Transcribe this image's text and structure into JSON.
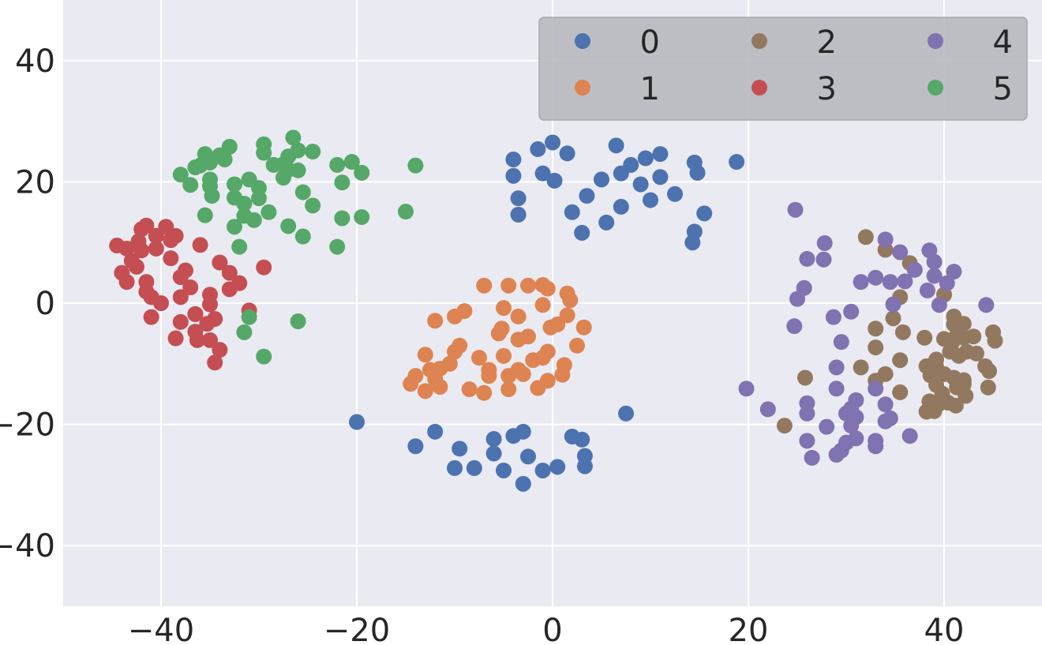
{
  "chart_data": {
    "type": "scatter",
    "title": "",
    "xlabel": "",
    "ylabel": "",
    "xlim": [
      -50,
      50
    ],
    "ylim": [
      -50,
      50
    ],
    "xticks": [
      -40,
      -20,
      0,
      20,
      40
    ],
    "yticks": [
      -40,
      -20,
      0,
      20,
      40
    ],
    "xtick_labels": [
      "−40",
      "−20",
      "0",
      "20",
      "40"
    ],
    "ytick_labels": [
      "−40",
      "−20",
      "0",
      "20",
      "40"
    ],
    "grid": true,
    "legend": {
      "placement": "top-right",
      "columns": 3
    },
    "series": [
      {
        "name": "0",
        "color": "#4c72b0",
        "points": [
          [
            -4,
            23.7
          ],
          [
            -4,
            21
          ],
          [
            -3.5,
            17.3
          ],
          [
            -3.5,
            14.6
          ],
          [
            -1.5,
            25.4
          ],
          [
            0,
            26.5
          ],
          [
            -1,
            21.4
          ],
          [
            0.2,
            20.2
          ],
          [
            1.5,
            24.7
          ],
          [
            2,
            15
          ],
          [
            3,
            11.6
          ],
          [
            3.5,
            17.7
          ],
          [
            5,
            20.4
          ],
          [
            5.5,
            13.3
          ],
          [
            6.5,
            26
          ],
          [
            7,
            21.4
          ],
          [
            8,
            22.8
          ],
          [
            7,
            15.9
          ],
          [
            9,
            19.6
          ],
          [
            9.5,
            23.9
          ],
          [
            10,
            17
          ],
          [
            11,
            20.8
          ],
          [
            11,
            24.6
          ],
          [
            12.5,
            18
          ],
          [
            14.5,
            23.2
          ],
          [
            14.8,
            21.5
          ],
          [
            15.5,
            14.8
          ],
          [
            14.5,
            11.8
          ],
          [
            14.3,
            10
          ],
          [
            18.8,
            23.3
          ],
          [
            -20,
            -19.6
          ],
          [
            -12,
            -21.2
          ],
          [
            -14,
            -23.6
          ],
          [
            -9.5,
            -24
          ],
          [
            -10,
            -27.2
          ],
          [
            -8,
            -27.2
          ],
          [
            -6,
            -22.4
          ],
          [
            -6,
            -24.8
          ],
          [
            -5,
            -27.6
          ],
          [
            -4,
            -21.9
          ],
          [
            -3,
            -21.2
          ],
          [
            -2.5,
            -25.3
          ],
          [
            -3,
            -29.8
          ],
          [
            -1,
            -27.6
          ],
          [
            0.5,
            -27
          ],
          [
            2,
            -22
          ],
          [
            3,
            -22.5
          ],
          [
            3.3,
            -25.2
          ],
          [
            3.3,
            -26.9
          ],
          [
            7.5,
            -18.2
          ]
        ]
      },
      {
        "name": "1",
        "color": "#dd8452",
        "points": [
          [
            -7,
            2.9
          ],
          [
            -4.5,
            2.9
          ],
          [
            -2.5,
            2.9
          ],
          [
            -1,
            3
          ],
          [
            -0.5,
            2.4
          ],
          [
            -1,
            -0.3
          ],
          [
            1.5,
            1.6
          ],
          [
            1.8,
            0.5
          ],
          [
            -5,
            -0.8
          ],
          [
            -3.5,
            -2.2
          ],
          [
            -9,
            -1.3
          ],
          [
            -10,
            -2.2
          ],
          [
            -12,
            -2.9
          ],
          [
            1.5,
            -2
          ],
          [
            0.5,
            -3.5
          ],
          [
            3.2,
            -4
          ],
          [
            -0.2,
            -4
          ],
          [
            -5.2,
            -4.2
          ],
          [
            -5.5,
            -5
          ],
          [
            -3.5,
            -6
          ],
          [
            -2.5,
            -5.5
          ],
          [
            -9.5,
            -7
          ],
          [
            -10,
            -8
          ],
          [
            -13,
            -8.5
          ],
          [
            -7.5,
            -9
          ],
          [
            -5,
            -8.7
          ],
          [
            -0.5,
            -8
          ],
          [
            -1,
            -9
          ],
          [
            -2,
            -9.4
          ],
          [
            2.5,
            -7
          ],
          [
            -10.5,
            -10
          ],
          [
            -11.5,
            -10.8
          ],
          [
            -12.5,
            -11
          ],
          [
            -3.5,
            -11
          ],
          [
            -6.5,
            -11
          ],
          [
            1.2,
            -10.2
          ],
          [
            1,
            -11.8
          ],
          [
            -6.5,
            -12
          ],
          [
            -4.5,
            -12
          ],
          [
            -3,
            -11.7
          ],
          [
            -14,
            -12
          ],
          [
            -14.5,
            -13.3
          ],
          [
            -12,
            -12.5
          ],
          [
            -11.5,
            -13.8
          ],
          [
            -13,
            -14.5
          ],
          [
            -0.5,
            -12.8
          ],
          [
            -8.5,
            -14.2
          ],
          [
            -7,
            -14.8
          ],
          [
            -4.5,
            -14.2
          ],
          [
            -1.5,
            -14
          ]
        ]
      },
      {
        "name": "2",
        "color": "#937860",
        "points": [
          [
            32,
            10.9
          ],
          [
            34,
            8.8
          ],
          [
            36.5,
            6.6
          ],
          [
            35.5,
            1
          ],
          [
            40,
            1.4
          ],
          [
            34.8,
            -2.5
          ],
          [
            33,
            -4.2
          ],
          [
            35.8,
            -4.8
          ],
          [
            33,
            -7.3
          ],
          [
            38,
            -5.7
          ],
          [
            41,
            -2.2
          ],
          [
            41,
            -3.5
          ],
          [
            42,
            -3.4
          ],
          [
            41.2,
            -5.6
          ],
          [
            40,
            -5.9
          ],
          [
            40.8,
            -6.6
          ],
          [
            42,
            -5.7
          ],
          [
            43,
            -5.5
          ],
          [
            45,
            -4.8
          ],
          [
            45.2,
            -6.2
          ],
          [
            40.6,
            -8
          ],
          [
            41.5,
            -8.7
          ],
          [
            42.3,
            -8
          ],
          [
            43.3,
            -8.3
          ],
          [
            39.2,
            -9.3
          ],
          [
            39.2,
            -10.5
          ],
          [
            38.2,
            -10.4
          ],
          [
            35.5,
            -9.4
          ],
          [
            31.5,
            -10.6
          ],
          [
            34,
            -11.7
          ],
          [
            38.6,
            -11.9
          ],
          [
            40,
            -11.7
          ],
          [
            41,
            -12.3
          ],
          [
            42,
            -12.7
          ],
          [
            44.2,
            -10.4
          ],
          [
            44.6,
            -11.2
          ],
          [
            39.2,
            -13.5
          ],
          [
            39.8,
            -14.9
          ],
          [
            41.3,
            -13.9
          ],
          [
            42,
            -13.4
          ],
          [
            44.5,
            -13.9
          ],
          [
            33,
            -12.8
          ],
          [
            35.5,
            -14.7
          ],
          [
            42.2,
            -15.3
          ],
          [
            38.5,
            -16.2
          ],
          [
            39.5,
            -16.6
          ],
          [
            40.4,
            -16.4
          ],
          [
            41.2,
            -16.9
          ],
          [
            38.2,
            -17.9
          ],
          [
            39,
            -17.8
          ],
          [
            25.8,
            -12.3
          ],
          [
            23.7,
            -20.2
          ]
        ]
      },
      {
        "name": "3",
        "color": "#c44e52",
        "points": [
          [
            -42,
            12.2
          ],
          [
            -41.5,
            12.8
          ],
          [
            -39.5,
            12.6
          ],
          [
            -40.5,
            11.1
          ],
          [
            -38.5,
            11.1
          ],
          [
            -39,
            10.4
          ],
          [
            -42.3,
            10.2
          ],
          [
            -44.5,
            9.5
          ],
          [
            -43.5,
            9
          ],
          [
            -42,
            8.7
          ],
          [
            -40.5,
            9
          ],
          [
            -39,
            7.4
          ],
          [
            -36,
            9.6
          ],
          [
            -43,
            7
          ],
          [
            -42.5,
            6
          ],
          [
            -44,
            5
          ],
          [
            -43.5,
            3.5
          ],
          [
            -41.5,
            3.5
          ],
          [
            -37.5,
            5.4
          ],
          [
            -38,
            4.3
          ],
          [
            -34,
            6.7
          ],
          [
            -33,
            5
          ],
          [
            -32,
            3.3
          ],
          [
            -37,
            2.6
          ],
          [
            -41.5,
            1.9
          ],
          [
            -41,
            1
          ],
          [
            -40,
            0
          ],
          [
            -38,
            1
          ],
          [
            -33,
            2.3
          ],
          [
            -35,
            1.4
          ],
          [
            -36.5,
            -1.8
          ],
          [
            -36.5,
            -1.8
          ],
          [
            -35,
            -0.2
          ],
          [
            -41,
            -2.3
          ],
          [
            -38,
            -3.1
          ],
          [
            -34.5,
            -2.6
          ],
          [
            -35.3,
            -3.4
          ],
          [
            -36.5,
            -4.7
          ],
          [
            -38.5,
            -5.8
          ],
          [
            -36.3,
            -6.1
          ],
          [
            -35,
            -6.1
          ],
          [
            -34,
            -7.7
          ],
          [
            -34.5,
            -9.8
          ],
          [
            -29.5,
            5.9
          ],
          [
            -31,
            -1.2
          ]
        ]
      },
      {
        "name": "4",
        "color": "#8172b2",
        "points": [
          [
            24.8,
            15.4
          ],
          [
            27.8,
            9.9
          ],
          [
            34,
            10.5
          ],
          [
            35.5,
            8.4
          ],
          [
            38.5,
            8.7
          ],
          [
            39,
            6.8
          ],
          [
            41,
            5.2
          ],
          [
            26,
            7.3
          ],
          [
            27.7,
            7.2
          ],
          [
            37,
            5.5
          ],
          [
            31.5,
            3.5
          ],
          [
            33,
            4.2
          ],
          [
            34.5,
            3.5
          ],
          [
            36,
            3.6
          ],
          [
            39,
            4.5
          ],
          [
            40.3,
            3.3
          ],
          [
            25.7,
            2.5
          ],
          [
            25,
            0.7
          ],
          [
            38.3,
            2.1
          ],
          [
            39.5,
            -0.3
          ],
          [
            34.8,
            -0.2
          ],
          [
            44.3,
            -0.3
          ],
          [
            24.7,
            -3.8
          ],
          [
            28.7,
            -2.3
          ],
          [
            30.5,
            -1.4
          ],
          [
            29.5,
            -6.4
          ],
          [
            29,
            -10.6
          ],
          [
            29,
            -14.1
          ],
          [
            33,
            -14.1
          ],
          [
            31,
            -16
          ],
          [
            30.5,
            -17.4
          ],
          [
            31,
            -18.8
          ],
          [
            30.5,
            -20.2
          ],
          [
            31,
            -22.3
          ],
          [
            34,
            -16.7
          ],
          [
            34,
            -19.5
          ],
          [
            34.5,
            -19
          ],
          [
            26,
            -16.5
          ],
          [
            26,
            -18.2
          ],
          [
            28,
            -20.4
          ],
          [
            22,
            -17.5
          ],
          [
            19.8,
            -14.1
          ],
          [
            26,
            -22.7
          ],
          [
            26.5,
            -25.5
          ],
          [
            29,
            -25
          ],
          [
            29.5,
            -24.3
          ],
          [
            30,
            -23
          ],
          [
            33,
            -23.6
          ],
          [
            33,
            -22.7
          ],
          [
            36.5,
            -21.9
          ],
          [
            30,
            -18.2
          ]
        ]
      },
      {
        "name": "5",
        "color": "#55a868",
        "points": [
          [
            -26.5,
            27.3
          ],
          [
            -29.5,
            26.2
          ],
          [
            -33,
            25.8
          ],
          [
            -29.5,
            24.8
          ],
          [
            -27,
            24.2
          ],
          [
            -26,
            25.2
          ],
          [
            -24.5,
            25
          ],
          [
            -35.5,
            24.6
          ],
          [
            -34,
            24.4
          ],
          [
            -36,
            22.7
          ],
          [
            -36.5,
            22.4
          ],
          [
            -35,
            23.2
          ],
          [
            -33.5,
            23.7
          ],
          [
            -28.5,
            22.8
          ],
          [
            -27.5,
            22.9
          ],
          [
            -27,
            22
          ],
          [
            -26,
            21.9
          ],
          [
            -22,
            22.8
          ],
          [
            -20.5,
            23.3
          ],
          [
            -19.5,
            21.5
          ],
          [
            -38,
            21.2
          ],
          [
            -37,
            19.5
          ],
          [
            -35,
            20.4
          ],
          [
            -35,
            19.3
          ],
          [
            -32.5,
            19.6
          ],
          [
            -31,
            20.4
          ],
          [
            -30,
            19
          ],
          [
            -34.8,
            17.7
          ],
          [
            -27.5,
            20.7
          ],
          [
            -21.5,
            19.9
          ],
          [
            -32.5,
            17.4
          ],
          [
            -31.5,
            16.4
          ],
          [
            -30,
            17.3
          ],
          [
            -25.5,
            18.3
          ],
          [
            -24.5,
            16.1
          ],
          [
            -35.5,
            14.5
          ],
          [
            -31.5,
            14.4
          ],
          [
            -29,
            15
          ],
          [
            -30.5,
            13.7
          ],
          [
            -32.5,
            12.6
          ],
          [
            -27,
            12.7
          ],
          [
            -21.5,
            14
          ],
          [
            -19.5,
            14.2
          ],
          [
            -15,
            15.1
          ],
          [
            -25.5,
            11
          ],
          [
            -32,
            9.3
          ],
          [
            -22,
            9.3
          ],
          [
            -14,
            22.7
          ],
          [
            -31,
            -2.3
          ],
          [
            -26,
            -3
          ],
          [
            -31.5,
            -4.8
          ],
          [
            -29.5,
            -8.8
          ]
        ]
      }
    ]
  }
}
